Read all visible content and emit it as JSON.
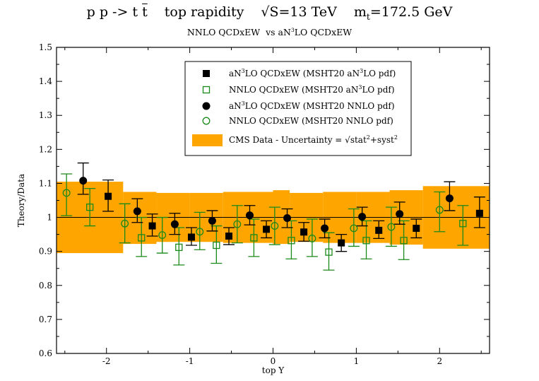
{
  "header": {
    "title_parts": [
      "p p -> t t̄",
      "top rapidity",
      "√S=13 TeV",
      "m_t=172.5 GeV"
    ],
    "subtitle": "NNLO QCDxEW  vs aN³LO QCDxEW"
  },
  "chart_data": {
    "type": "scatter",
    "xlabel": "top Y",
    "ylabel": "Theory/Data",
    "xlim": [
      -2.6,
      2.6
    ],
    "ylim": [
      0.6,
      1.5
    ],
    "xticks": [
      -2,
      -1,
      0,
      1,
      2
    ],
    "yticks": [
      0.6,
      0.7,
      0.8,
      0.9,
      1.0,
      1.1,
      1.2,
      1.3,
      1.4,
      1.5
    ],
    "ytick_labels": [
      "0.6",
      "0.7",
      "0.8",
      "0.9",
      "1",
      "1.1",
      "1.2",
      "1.3",
      "1.4",
      "1.5"
    ],
    "xtick_labels": [
      "-2",
      "-1",
      "0",
      "1",
      "2"
    ],
    "reference_line": 1.0,
    "band": {
      "name": "CMS Data  -  Uncertainty = √stat²+syst²",
      "color": "#FFA500",
      "bins": [
        {
          "x0": -2.6,
          "x1": -1.8,
          "lo": 0.895,
          "hi": 1.105
        },
        {
          "x0": -1.8,
          "x1": -1.4,
          "lo": 0.922,
          "hi": 1.075
        },
        {
          "x0": -1.4,
          "x1": -1.0,
          "lo": 0.928,
          "hi": 1.072
        },
        {
          "x0": -1.0,
          "x1": -0.6,
          "lo": 0.928,
          "hi": 1.072
        },
        {
          "x0": -0.6,
          "x1": 0.0,
          "lo": 0.925,
          "hi": 1.075
        },
        {
          "x0": 0.0,
          "x1": 0.2,
          "lo": 0.922,
          "hi": 1.08
        },
        {
          "x0": 0.2,
          "x1": 0.6,
          "lo": 0.928,
          "hi": 1.072
        },
        {
          "x0": 0.6,
          "x1": 1.0,
          "lo": 0.925,
          "hi": 1.075
        },
        {
          "x0": 1.0,
          "x1": 1.4,
          "lo": 0.925,
          "hi": 1.075
        },
        {
          "x0": 1.4,
          "x1": 1.8,
          "lo": 0.92,
          "hi": 1.08
        },
        {
          "x0": 1.8,
          "x1": 2.6,
          "lo": 0.908,
          "hi": 1.092
        }
      ]
    },
    "series": [
      {
        "name": "aN³LO QCDxEW (MSHT20  aN³LO pdf)",
        "marker": "square-filled",
        "color": "#000000",
        "points": [
          {
            "x": -1.98,
            "y": 1.062,
            "lo": 1.018,
            "hi": 1.11
          },
          {
            "x": -1.45,
            "y": 0.975,
            "lo": 0.945,
            "hi": 1.01
          },
          {
            "x": -0.98,
            "y": 0.942,
            "lo": 0.918,
            "hi": 0.97
          },
          {
            "x": -0.53,
            "y": 0.945,
            "lo": 0.92,
            "hi": 0.97
          },
          {
            "x": -0.08,
            "y": 0.965,
            "lo": 0.94,
            "hi": 0.99
          },
          {
            "x": 0.37,
            "y": 0.957,
            "lo": 0.93,
            "hi": 0.985
          },
          {
            "x": 0.82,
            "y": 0.925,
            "lo": 0.9,
            "hi": 0.95
          },
          {
            "x": 1.27,
            "y": 0.962,
            "lo": 0.938,
            "hi": 0.99
          },
          {
            "x": 1.72,
            "y": 0.968,
            "lo": 0.94,
            "hi": 0.995
          },
          {
            "x": 2.48,
            "y": 1.012,
            "lo": 0.97,
            "hi": 1.06
          }
        ]
      },
      {
        "name": "NNLO QCDxEW (MSHT20 aN³LO pdf)",
        "marker": "square-open",
        "color": "#1a8a1a",
        "points": [
          {
            "x": -2.2,
            "y": 1.03,
            "lo": 0.975,
            "hi": 1.085
          },
          {
            "x": -1.58,
            "y": 0.94,
            "lo": 0.885,
            "hi": 1.0
          },
          {
            "x": -1.13,
            "y": 0.912,
            "lo": 0.86,
            "hi": 0.97
          },
          {
            "x": -0.68,
            "y": 0.918,
            "lo": 0.865,
            "hi": 0.975
          },
          {
            "x": -0.23,
            "y": 0.94,
            "lo": 0.885,
            "hi": 0.995
          },
          {
            "x": 0.22,
            "y": 0.932,
            "lo": 0.878,
            "hi": 0.99
          },
          {
            "x": 0.67,
            "y": 0.898,
            "lo": 0.845,
            "hi": 0.955
          },
          {
            "x": 1.12,
            "y": 0.932,
            "lo": 0.878,
            "hi": 0.99
          },
          {
            "x": 1.57,
            "y": 0.932,
            "lo": 0.876,
            "hi": 0.99
          },
          {
            "x": 2.28,
            "y": 0.982,
            "lo": 0.918,
            "hi": 1.035
          }
        ]
      },
      {
        "name": "aN³LO QCDxEW (MSHT20 NNLO pdf)",
        "marker": "circle-filled",
        "color": "#000000",
        "points": [
          {
            "x": -2.28,
            "y": 1.108,
            "lo": 1.068,
            "hi": 1.16
          },
          {
            "x": -1.63,
            "y": 1.018,
            "lo": 0.985,
            "hi": 1.055
          },
          {
            "x": -1.18,
            "y": 0.98,
            "lo": 0.95,
            "hi": 1.012
          },
          {
            "x": -0.73,
            "y": 0.99,
            "lo": 0.96,
            "hi": 1.02
          },
          {
            "x": -0.28,
            "y": 1.006,
            "lo": 0.978,
            "hi": 1.035
          },
          {
            "x": 0.17,
            "y": 0.998,
            "lo": 0.97,
            "hi": 1.025
          },
          {
            "x": 0.62,
            "y": 0.968,
            "lo": 0.94,
            "hi": 0.995
          },
          {
            "x": 1.07,
            "y": 1.002,
            "lo": 0.975,
            "hi": 1.03
          },
          {
            "x": 1.52,
            "y": 1.01,
            "lo": 0.98,
            "hi": 1.045
          },
          {
            "x": 2.12,
            "y": 1.056,
            "lo": 1.02,
            "hi": 1.105
          }
        ]
      },
      {
        "name": "NNLO QCDxEW (MSHT20 NNLO pdf)",
        "marker": "circle-open",
        "color": "#1a8a1a",
        "points": [
          {
            "x": -2.48,
            "y": 1.072,
            "lo": 1.005,
            "hi": 1.128
          },
          {
            "x": -1.78,
            "y": 0.982,
            "lo": 0.925,
            "hi": 1.04
          },
          {
            "x": -1.33,
            "y": 0.948,
            "lo": 0.895,
            "hi": 1.0
          },
          {
            "x": -0.88,
            "y": 0.958,
            "lo": 0.905,
            "hi": 1.015
          },
          {
            "x": -0.43,
            "y": 0.98,
            "lo": 0.925,
            "hi": 1.035
          },
          {
            "x": 0.02,
            "y": 0.975,
            "lo": 0.92,
            "hi": 1.03
          },
          {
            "x": 0.47,
            "y": 0.938,
            "lo": 0.885,
            "hi": 0.995
          },
          {
            "x": 0.97,
            "y": 0.968,
            "lo": 0.915,
            "hi": 1.025
          },
          {
            "x": 1.42,
            "y": 0.972,
            "lo": 0.915,
            "hi": 1.03
          },
          {
            "x": 2.0,
            "y": 1.022,
            "lo": 0.958,
            "hi": 1.075
          }
        ]
      }
    ]
  },
  "legend": {
    "placement": "top-right",
    "entries": [
      {
        "main": "aN",
        "sup": "3",
        "rest": "LO QCDxEW (MSHT20  aN",
        "sup2": "3",
        "rest2": "LO pdf)"
      },
      {
        "main": "NNLO QCDxEW (MSHT20 aN",
        "sup": "3",
        "rest": "LO pdf)",
        "sup2": "",
        "rest2": ""
      },
      {
        "main": "aN",
        "sup": "3",
        "rest": "LO QCDxEW (MSHT20 NNLO pdf)",
        "sup2": "",
        "rest2": ""
      },
      {
        "main": "NNLO QCDxEW (MSHT20 NNLO pdf)",
        "sup": "",
        "rest": "",
        "sup2": "",
        "rest2": ""
      },
      {
        "main": "CMS Data  -  Uncertainty = √stat",
        "sup": "2",
        "rest": "+syst",
        "sup2": "2",
        "rest2": ""
      }
    ]
  }
}
